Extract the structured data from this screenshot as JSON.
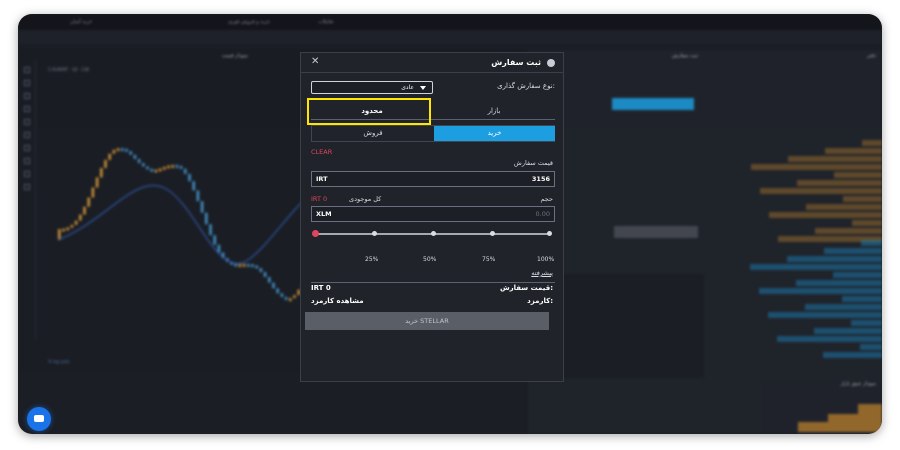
{
  "modal": {
    "title": "ثبت سفارش",
    "order_type_label": "نوع سفارش گذاری:",
    "order_type_value": "عادی",
    "tab_market": "بازار",
    "tab_limit": "محدود",
    "tab_buy": "خرید",
    "tab_sell": "فروش",
    "clear": "CLEAR",
    "order_price_label": "قیمت سفارش",
    "price_unit": "IRT",
    "price_value": "3156",
    "volume_label": "حجم",
    "balance_label": "کل موجودی",
    "balance_value": "IRT 0",
    "volume_unit": "XLM",
    "volume_placeholder": "0.00",
    "slider_percent": 0,
    "slider_marks": [
      "25%",
      "50%",
      "75%",
      "100%"
    ],
    "advanced": "پیشرفته",
    "summary_price_label": "قیمت سفارش:",
    "summary_price_value": "IRT 0",
    "fee_label": "کارمزد:",
    "fee_value": "مشاهده کارمزد",
    "submit": "خرید STELLAR"
  },
  "background": {
    "symbol_line": "C:XLM/IRT · 1D · CXE",
    "chart_panel_title": "نمودار قیمت",
    "order_panel_title": "ثبت سفارش",
    "orderbook_title": "دفتر",
    "depth_title": "نمودار عمق بازار",
    "top_items": [
      "تعاملات",
      "خرید و فروش فوری",
      "خرید آسان"
    ],
    "colors": {
      "buy": "#1d9ee0",
      "sell": "#e0455f",
      "highlight": "#ffe600"
    }
  }
}
